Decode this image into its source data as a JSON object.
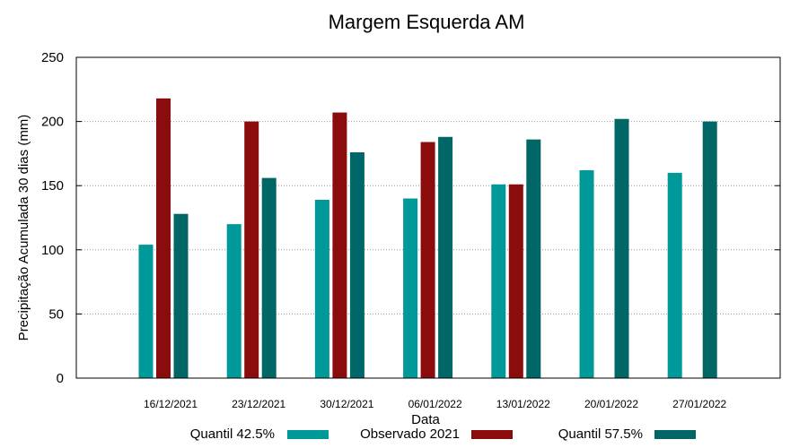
{
  "chart_data": {
    "type": "bar",
    "title": "Margem Esquerda AM",
    "xlabel": "Data",
    "ylabel": "Precipitação Acumulada 30 dias (mm)",
    "ylim": [
      0,
      250
    ],
    "yticks": [
      0,
      50,
      100,
      150,
      200,
      250
    ],
    "grid": true,
    "legend_position": "bottom",
    "categories": [
      "16/12/2021",
      "23/12/2021",
      "30/12/2021",
      "06/01/2022",
      "13/01/2022",
      "20/01/2022",
      "27/01/2022"
    ],
    "series": [
      {
        "name": "Quantil 42.5%",
        "color": "#009999",
        "values": [
          104,
          120,
          139,
          140,
          151,
          162,
          160
        ]
      },
      {
        "name": "Observado 2021",
        "color": "#8b0c0c",
        "values": [
          218,
          200,
          207,
          184,
          151,
          null,
          null
        ]
      },
      {
        "name": "Quantil 57.5%",
        "color": "#006666",
        "values": [
          128,
          156,
          176,
          188,
          186,
          202,
          200
        ]
      }
    ]
  }
}
